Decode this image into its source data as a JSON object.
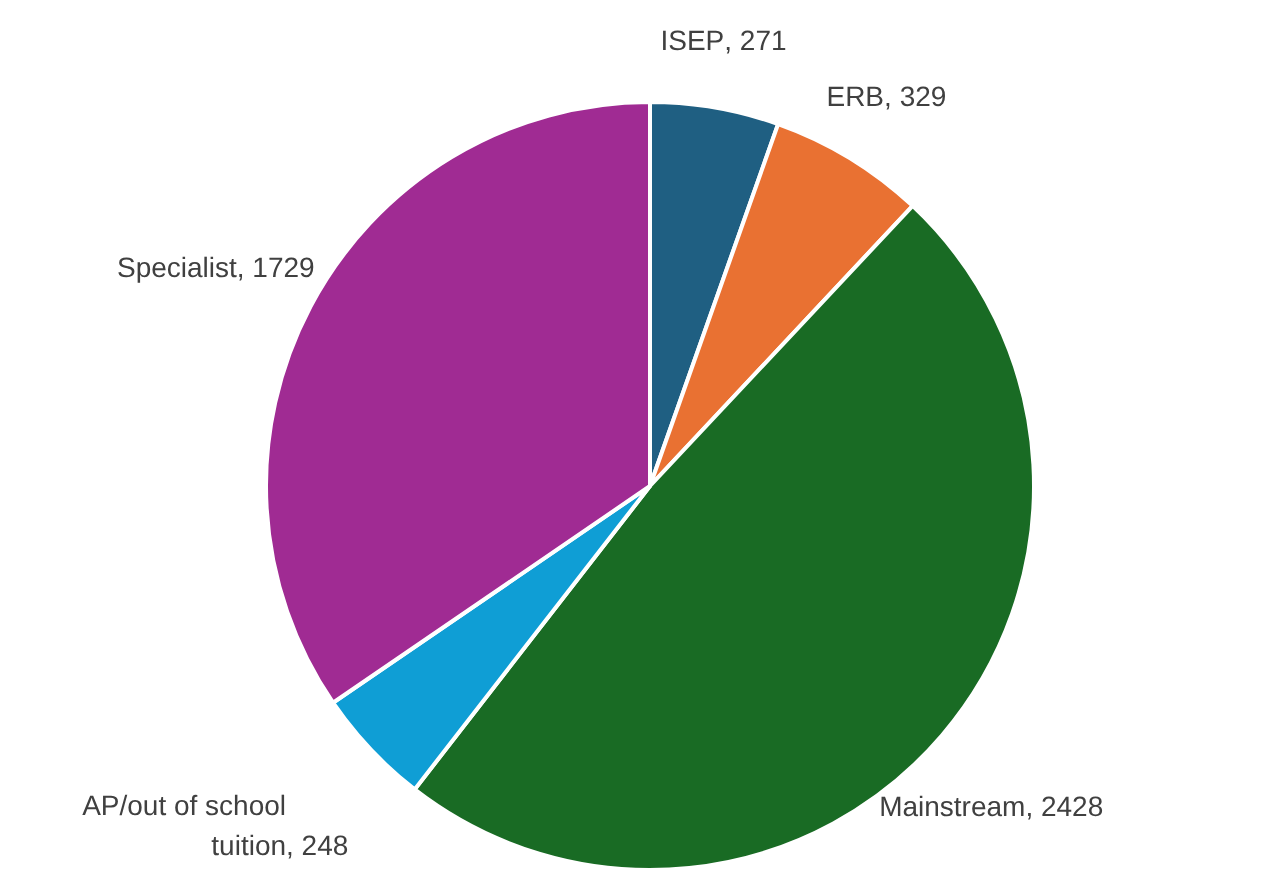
{
  "chart_data": {
    "type": "pie",
    "categories": [
      "ISEP",
      "ERB",
      "Mainstream",
      "AP/out of school tuition",
      "Specialist"
    ],
    "values": [
      271,
      329,
      2428,
      248,
      1729
    ],
    "value_labels": [
      ", 271",
      ", 329",
      ", 2428",
      ", 248",
      ", 1729"
    ],
    "colors": [
      "#1f5f82",
      "#e97132",
      "#196b24",
      "#0f9ed5",
      "#a02b93"
    ]
  }
}
